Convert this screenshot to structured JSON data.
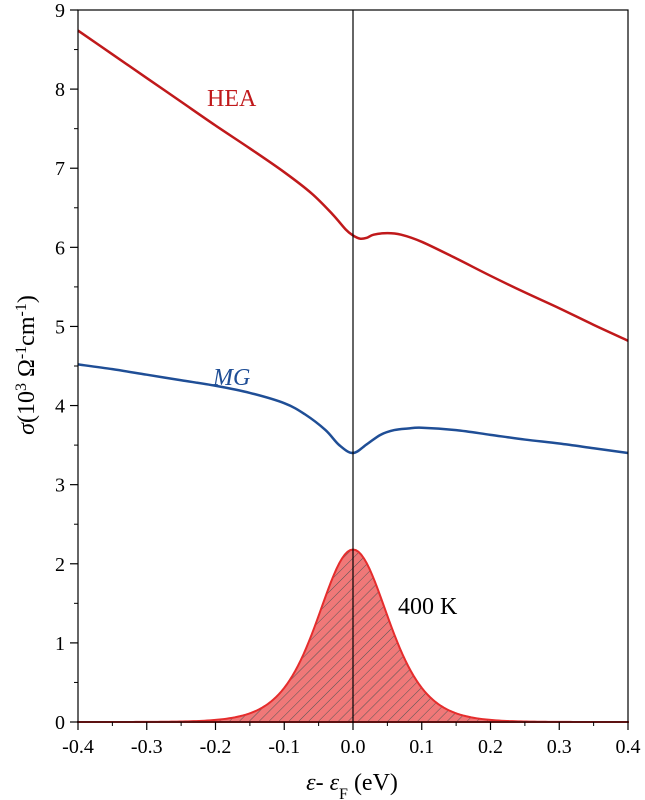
{
  "chart_data": {
    "type": "line",
    "xlabel": {
      "var1": "ε",
      "sep": "- ",
      "var2": "ε",
      "sub": "F",
      "unit": " (eV)"
    },
    "ylabel": {
      "sym": "σ",
      "pre": "(10",
      "sup1": "3",
      "mid": " Ω",
      "sup2": "-1",
      "mid2": "cm",
      "sup3": "-1",
      "post": ")"
    },
    "xlim": [
      -0.4,
      0.4
    ],
    "ylim": [
      0,
      9
    ],
    "x_ticks": [
      "-0.4",
      "-0.3",
      "-0.2",
      "-0.1",
      "0.0",
      "0.1",
      "0.2",
      "0.3",
      "0.4"
    ],
    "y_ticks": [
      "0",
      "1",
      "2",
      "3",
      "4",
      "5",
      "6",
      "7",
      "8",
      "9"
    ],
    "grid": false,
    "series": [
      {
        "name": "HEA",
        "color": "#c0191b",
        "x": [
          -0.4,
          -0.35,
          -0.3,
          -0.25,
          -0.2,
          -0.15,
          -0.1,
          -0.06,
          -0.03,
          -0.01,
          0.0,
          0.01,
          0.02,
          0.03,
          0.05,
          0.07,
          0.1,
          0.15,
          0.2,
          0.25,
          0.3,
          0.35,
          0.4
        ],
        "y": [
          8.74,
          8.44,
          8.14,
          7.84,
          7.54,
          7.25,
          6.95,
          6.68,
          6.42,
          6.22,
          6.15,
          6.11,
          6.12,
          6.16,
          6.18,
          6.16,
          6.07,
          5.86,
          5.64,
          5.43,
          5.23,
          5.02,
          4.82
        ]
      },
      {
        "name": "MG",
        "color": "#1f4e96",
        "x": [
          -0.4,
          -0.35,
          -0.3,
          -0.25,
          -0.2,
          -0.15,
          -0.1,
          -0.07,
          -0.04,
          -0.02,
          0.0,
          0.02,
          0.04,
          0.06,
          0.08,
          0.1,
          0.15,
          0.2,
          0.25,
          0.3,
          0.35,
          0.4
        ],
        "y": [
          4.52,
          4.46,
          4.39,
          4.32,
          4.25,
          4.16,
          4.03,
          3.89,
          3.69,
          3.5,
          3.4,
          3.51,
          3.63,
          3.69,
          3.71,
          3.72,
          3.69,
          3.63,
          3.57,
          3.52,
          3.46,
          3.4
        ]
      }
    ],
    "fermi_window": {
      "label": "400 K",
      "peak": 2.18,
      "kT": 0.0345,
      "fill_color": "#f07878",
      "line_color": "#e52d2d"
    }
  }
}
